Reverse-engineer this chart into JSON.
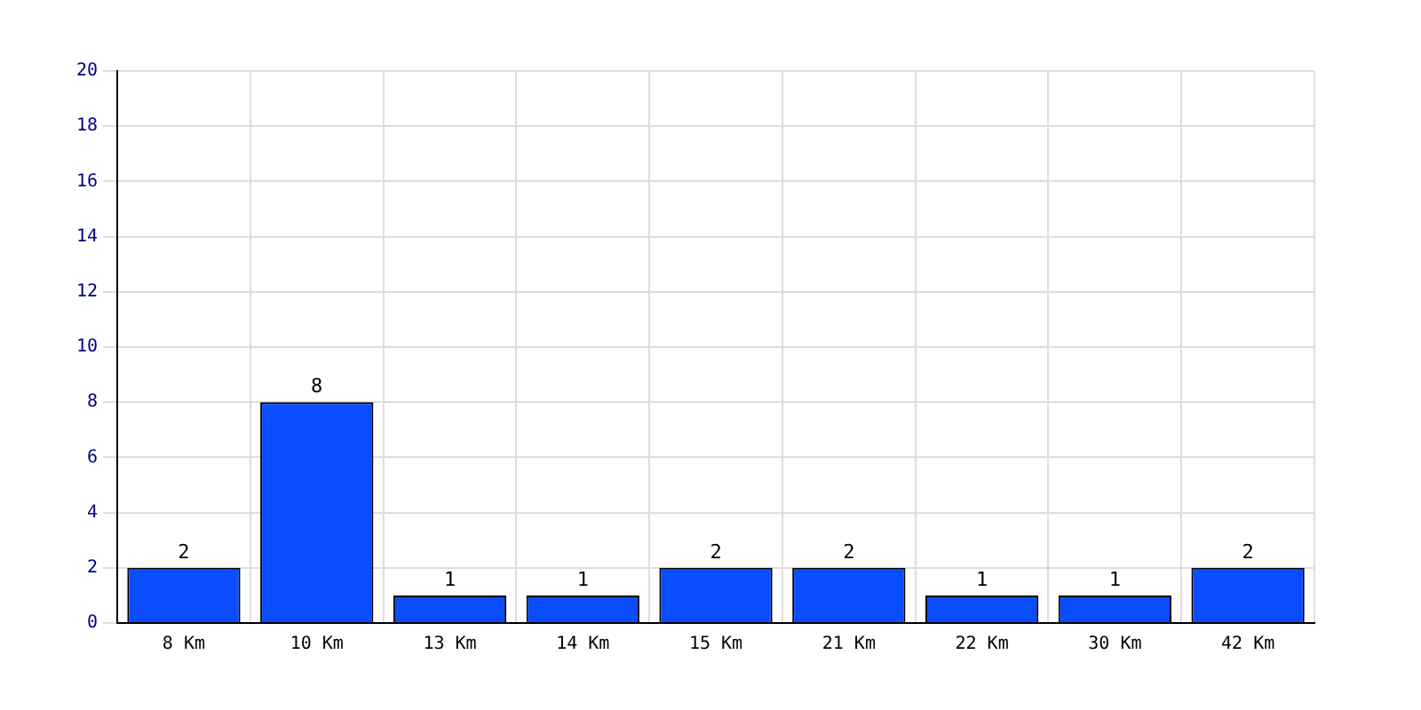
{
  "chart_data": {
    "type": "bar",
    "categories": [
      "8 Km",
      "10 Km",
      "13 Km",
      "14 Km",
      "15 Km",
      "21 Km",
      "22 Km",
      "30 Km",
      "42 Km"
    ],
    "values": [
      2,
      8,
      1,
      1,
      2,
      2,
      1,
      1,
      2
    ],
    "color": "#0a4cff",
    "ylim": [
      0,
      20
    ],
    "yticks": [
      0,
      2,
      4,
      6,
      8,
      10,
      12,
      14,
      16,
      18,
      20
    ],
    "grid": true,
    "data_labels": true
  }
}
